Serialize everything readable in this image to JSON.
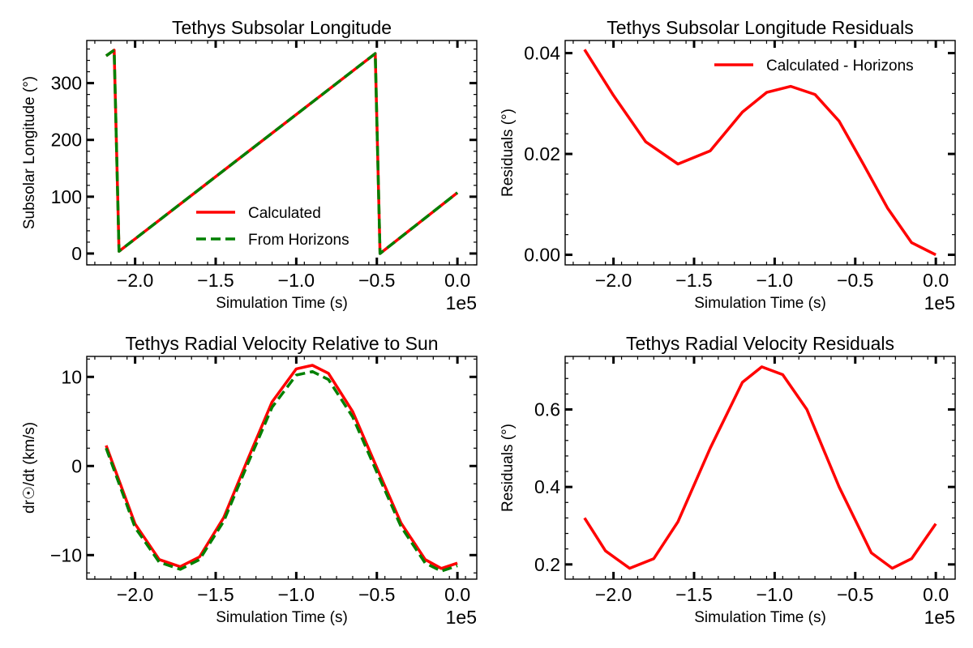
{
  "colors": {
    "calculated": "#ff0000",
    "horizons": "#008000",
    "axis": "#000000"
  },
  "chart_data": [
    {
      "type": "line",
      "title": "Tethys Subsolar Longitude",
      "xlabel": "Simulation Time (s)",
      "ylabel": "Subsolar Longitude (°)",
      "x_offset_text": "1e5",
      "xlim": [
        -2.3,
        0.12
      ],
      "ylim": [
        -20,
        375
      ],
      "xticks": [
        -2.0,
        -1.5,
        -1.0,
        -0.5,
        0.0
      ],
      "xtick_labels": [
        "−2.0",
        "−1.5",
        "−1.0",
        "−0.5",
        "0.0"
      ],
      "yticks": [
        0,
        100,
        200,
        300
      ],
      "ytick_labels": [
        "0",
        "100",
        "200",
        "300"
      ],
      "legend": "lower-right",
      "grid": false,
      "series": [
        {
          "name": "Calculated",
          "style": "solid",
          "color": "#ff0000",
          "x": [
            -2.18,
            -2.13,
            -2.1,
            -0.51,
            -0.48,
            0.0
          ],
          "y": [
            348,
            358,
            4,
            352,
            0,
            107
          ]
        },
        {
          "name": "From Horizons",
          "style": "dashed",
          "color": "#008000",
          "x": [
            -2.18,
            -2.13,
            -2.1,
            -0.51,
            -0.48,
            0.0
          ],
          "y": [
            348,
            358,
            4,
            352,
            0,
            107
          ]
        }
      ]
    },
    {
      "type": "line",
      "title": "Tethys Subsolar Longitude Residuals",
      "xlabel": "Simulation Time (s)",
      "ylabel": "Residuals (°)",
      "x_offset_text": "1e5",
      "xlim": [
        -2.3,
        0.12
      ],
      "ylim": [
        -0.002,
        0.0425
      ],
      "xticks": [
        -2.0,
        -1.5,
        -1.0,
        -0.5,
        0.0
      ],
      "xtick_labels": [
        "−2.0",
        "−1.5",
        "−1.0",
        "−0.5",
        "0.0"
      ],
      "yticks": [
        0.0,
        0.02,
        0.04
      ],
      "ytick_labels": [
        "0.00",
        "0.02",
        "0.04"
      ],
      "legend": "upper-right",
      "grid": false,
      "series": [
        {
          "name": "Calculated - Horizons",
          "style": "solid",
          "color": "#ff0000",
          "x": [
            -2.18,
            -2.0,
            -1.8,
            -1.6,
            -1.4,
            -1.2,
            -1.05,
            -0.9,
            -0.75,
            -0.6,
            -0.45,
            -0.3,
            -0.15,
            0.0
          ],
          "y": [
            0.0407,
            0.0316,
            0.0224,
            0.018,
            0.0206,
            0.0283,
            0.0322,
            0.0334,
            0.0318,
            0.0265,
            0.018,
            0.0093,
            0.0024,
            0.0
          ]
        }
      ]
    },
    {
      "type": "line",
      "title": "Tethys Radial Velocity Relative to Sun",
      "xlabel": "Simulation Time (s)",
      "ylabel": "dr☉/dt (km/s)",
      "x_offset_text": "1e5",
      "xlim": [
        -2.3,
        0.12
      ],
      "ylim": [
        -12.7,
        12.3
      ],
      "xticks": [
        -2.0,
        -1.5,
        -1.0,
        -0.5,
        0.0
      ],
      "xtick_labels": [
        "−2.0",
        "−1.5",
        "−1.0",
        "−0.5",
        "0.0"
      ],
      "yticks": [
        -10,
        0,
        10
      ],
      "ytick_labels": [
        "−10",
        "0",
        "10"
      ],
      "legend": "none",
      "grid": false,
      "series": [
        {
          "name": "",
          "style": "solid",
          "color": "#ff0000",
          "x": [
            -2.18,
            -2.0,
            -1.85,
            -1.72,
            -1.6,
            -1.45,
            -1.3,
            -1.15,
            -1.0,
            -0.9,
            -0.8,
            -0.65,
            -0.5,
            -0.35,
            -0.2,
            -0.1,
            0.0
          ],
          "y": [
            2.3,
            -6.5,
            -10.5,
            -11.3,
            -10.2,
            -5.8,
            0.8,
            7.2,
            10.9,
            11.3,
            10.4,
            6.1,
            -0.2,
            -6.4,
            -10.5,
            -11.5,
            -10.9
          ]
        },
        {
          "name": "",
          "style": "dashed",
          "color": "#008000",
          "x": [
            -2.18,
            -2.0,
            -1.85,
            -1.72,
            -1.6,
            -1.45,
            -1.3,
            -1.15,
            -1.0,
            -0.9,
            -0.8,
            -0.65,
            -0.5,
            -0.35,
            -0.2,
            -0.1,
            0.0
          ],
          "y": [
            2.0,
            -6.9,
            -10.8,
            -11.6,
            -10.5,
            -6.2,
            0.3,
            6.6,
            10.2,
            10.6,
            9.7,
            5.5,
            -0.7,
            -6.8,
            -10.9,
            -11.8,
            -11.2
          ]
        }
      ]
    },
    {
      "type": "line",
      "title": "Tethys Radial Velocity Residuals",
      "xlabel": "Simulation Time (s)",
      "ylabel": "Residuals (°)",
      "x_offset_text": "1e5",
      "xlim": [
        -2.3,
        0.12
      ],
      "ylim": [
        0.162,
        0.737
      ],
      "xticks": [
        -2.0,
        -1.5,
        -1.0,
        -0.5,
        0.0
      ],
      "xtick_labels": [
        "−2.0",
        "−1.5",
        "−1.0",
        "−0.5",
        "0.0"
      ],
      "yticks": [
        0.2,
        0.4,
        0.6
      ],
      "ytick_labels": [
        "0.2",
        "0.4",
        "0.6"
      ],
      "legend": "none",
      "grid": false,
      "series": [
        {
          "name": "",
          "style": "solid",
          "color": "#ff0000",
          "x": [
            -2.18,
            -2.05,
            -1.9,
            -1.75,
            -1.6,
            -1.4,
            -1.2,
            -1.08,
            -0.95,
            -0.8,
            -0.6,
            -0.4,
            -0.27,
            -0.15,
            0.0
          ],
          "y": [
            0.32,
            0.235,
            0.19,
            0.215,
            0.31,
            0.5,
            0.67,
            0.71,
            0.69,
            0.6,
            0.4,
            0.23,
            0.19,
            0.215,
            0.305
          ]
        }
      ]
    }
  ]
}
